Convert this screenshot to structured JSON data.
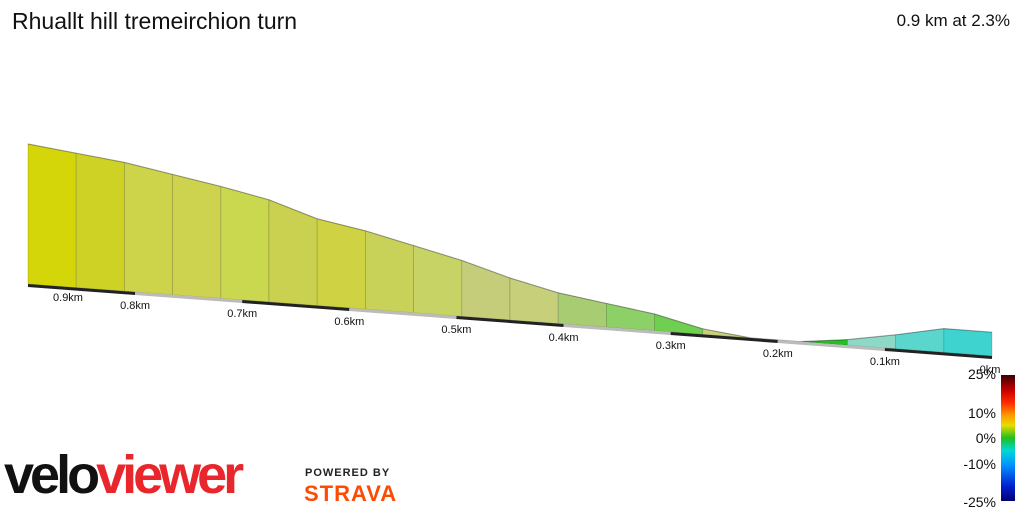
{
  "header": {
    "title": "Rhuallt hill tremeirchion turn",
    "summary": "0.9 km at 2.3%"
  },
  "legend": {
    "labels": [
      "25%",
      "10%",
      "0%",
      "-10%",
      "-25%"
    ],
    "colors": [
      "#3a0000",
      "#c80000",
      "#ff2a00",
      "#ff9a00",
      "#e8dc00",
      "#1fbf1f",
      "#00d8d8",
      "#0090ff",
      "#0020d0",
      "#000070"
    ]
  },
  "branding": {
    "velo": "velo",
    "viewer": "viewer",
    "powered_by": "POWERED BY",
    "strava": "STRAVA"
  },
  "chart_data": {
    "type": "area",
    "title": "Rhuallt hill tremeirchion turn",
    "xlabel": "",
    "ylabel": "",
    "x_axis": "distance_km_reversed",
    "tick_labels": [
      "0.9km",
      "0.8km",
      "0.7km",
      "0.6km",
      "0.5km",
      "0.4km",
      "0.3km",
      "0.2km",
      "0.1km",
      "0km"
    ],
    "tick_values": [
      0.9,
      0.8,
      0.7,
      0.6,
      0.5,
      0.4,
      0.3,
      0.2,
      0.1,
      0.0
    ],
    "xlim": [
      0.9,
      0.0
    ],
    "relative_elevation": [
      1.0,
      0.96,
      0.92,
      0.86,
      0.8,
      0.73,
      0.62,
      0.56,
      0.48,
      0.4,
      0.3,
      0.22,
      0.17,
      0.12,
      0.04,
      0.0,
      0.0,
      0.04,
      0.1,
      0.17
    ],
    "segment_distance_km": [
      0.9,
      0.855,
      0.81,
      0.765,
      0.72,
      0.675,
      0.63,
      0.585,
      0.54,
      0.495,
      0.45,
      0.405,
      0.36,
      0.315,
      0.27,
      0.225,
      0.18,
      0.135,
      0.09,
      0.045,
      0.0
    ],
    "segment_colors": [
      "#d4d60a",
      "#cdd225",
      "#cdd44a",
      "#cdd34e",
      "#cad84f",
      "#cad04f",
      "#cfd243",
      "#c9d258",
      "#c8d365",
      "#c6cd7a",
      "#c8cf7a",
      "#a8cc72",
      "#8ed068",
      "#6fcf50",
      "#c8d080",
      "#c2ce84",
      "#22c022",
      "#8ed8c6",
      "#5ad6cc",
      "#3fd3cf"
    ],
    "gradient_scale_percent": [
      25,
      10,
      0,
      -10,
      -25
    ],
    "summary": {
      "distance_km": 0.9,
      "average_gradient_percent": 2.3
    }
  }
}
